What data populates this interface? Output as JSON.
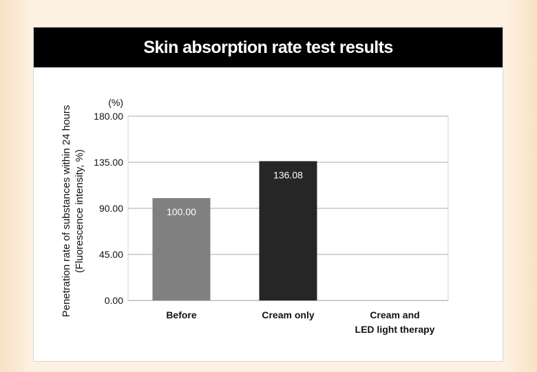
{
  "chart_data": {
    "type": "bar",
    "title": "Skin absorption rate test results",
    "unit_label": "(%)",
    "ylabel_lines": [
      "Penetration rate of substances within 24 hours",
      "(Fluorescence intensity, %)"
    ],
    "xlabel": "",
    "categories": [
      [
        "Before"
      ],
      [
        "Cream only"
      ],
      [
        "Cream and",
        "LED light therapy"
      ]
    ],
    "values": [
      100.0,
      136.08,
      null
    ],
    "value_labels": [
      "100.00",
      "136.08",
      ""
    ],
    "ylim": [
      0,
      180
    ],
    "yticks": [
      0,
      45,
      90,
      135,
      180
    ],
    "ytick_labels": [
      "0.00",
      "45.00",
      "90.00",
      "135.00",
      "180.00"
    ],
    "grid": true,
    "legend": "none",
    "colors": [
      "#808080",
      "#262626",
      "#808080"
    ]
  }
}
